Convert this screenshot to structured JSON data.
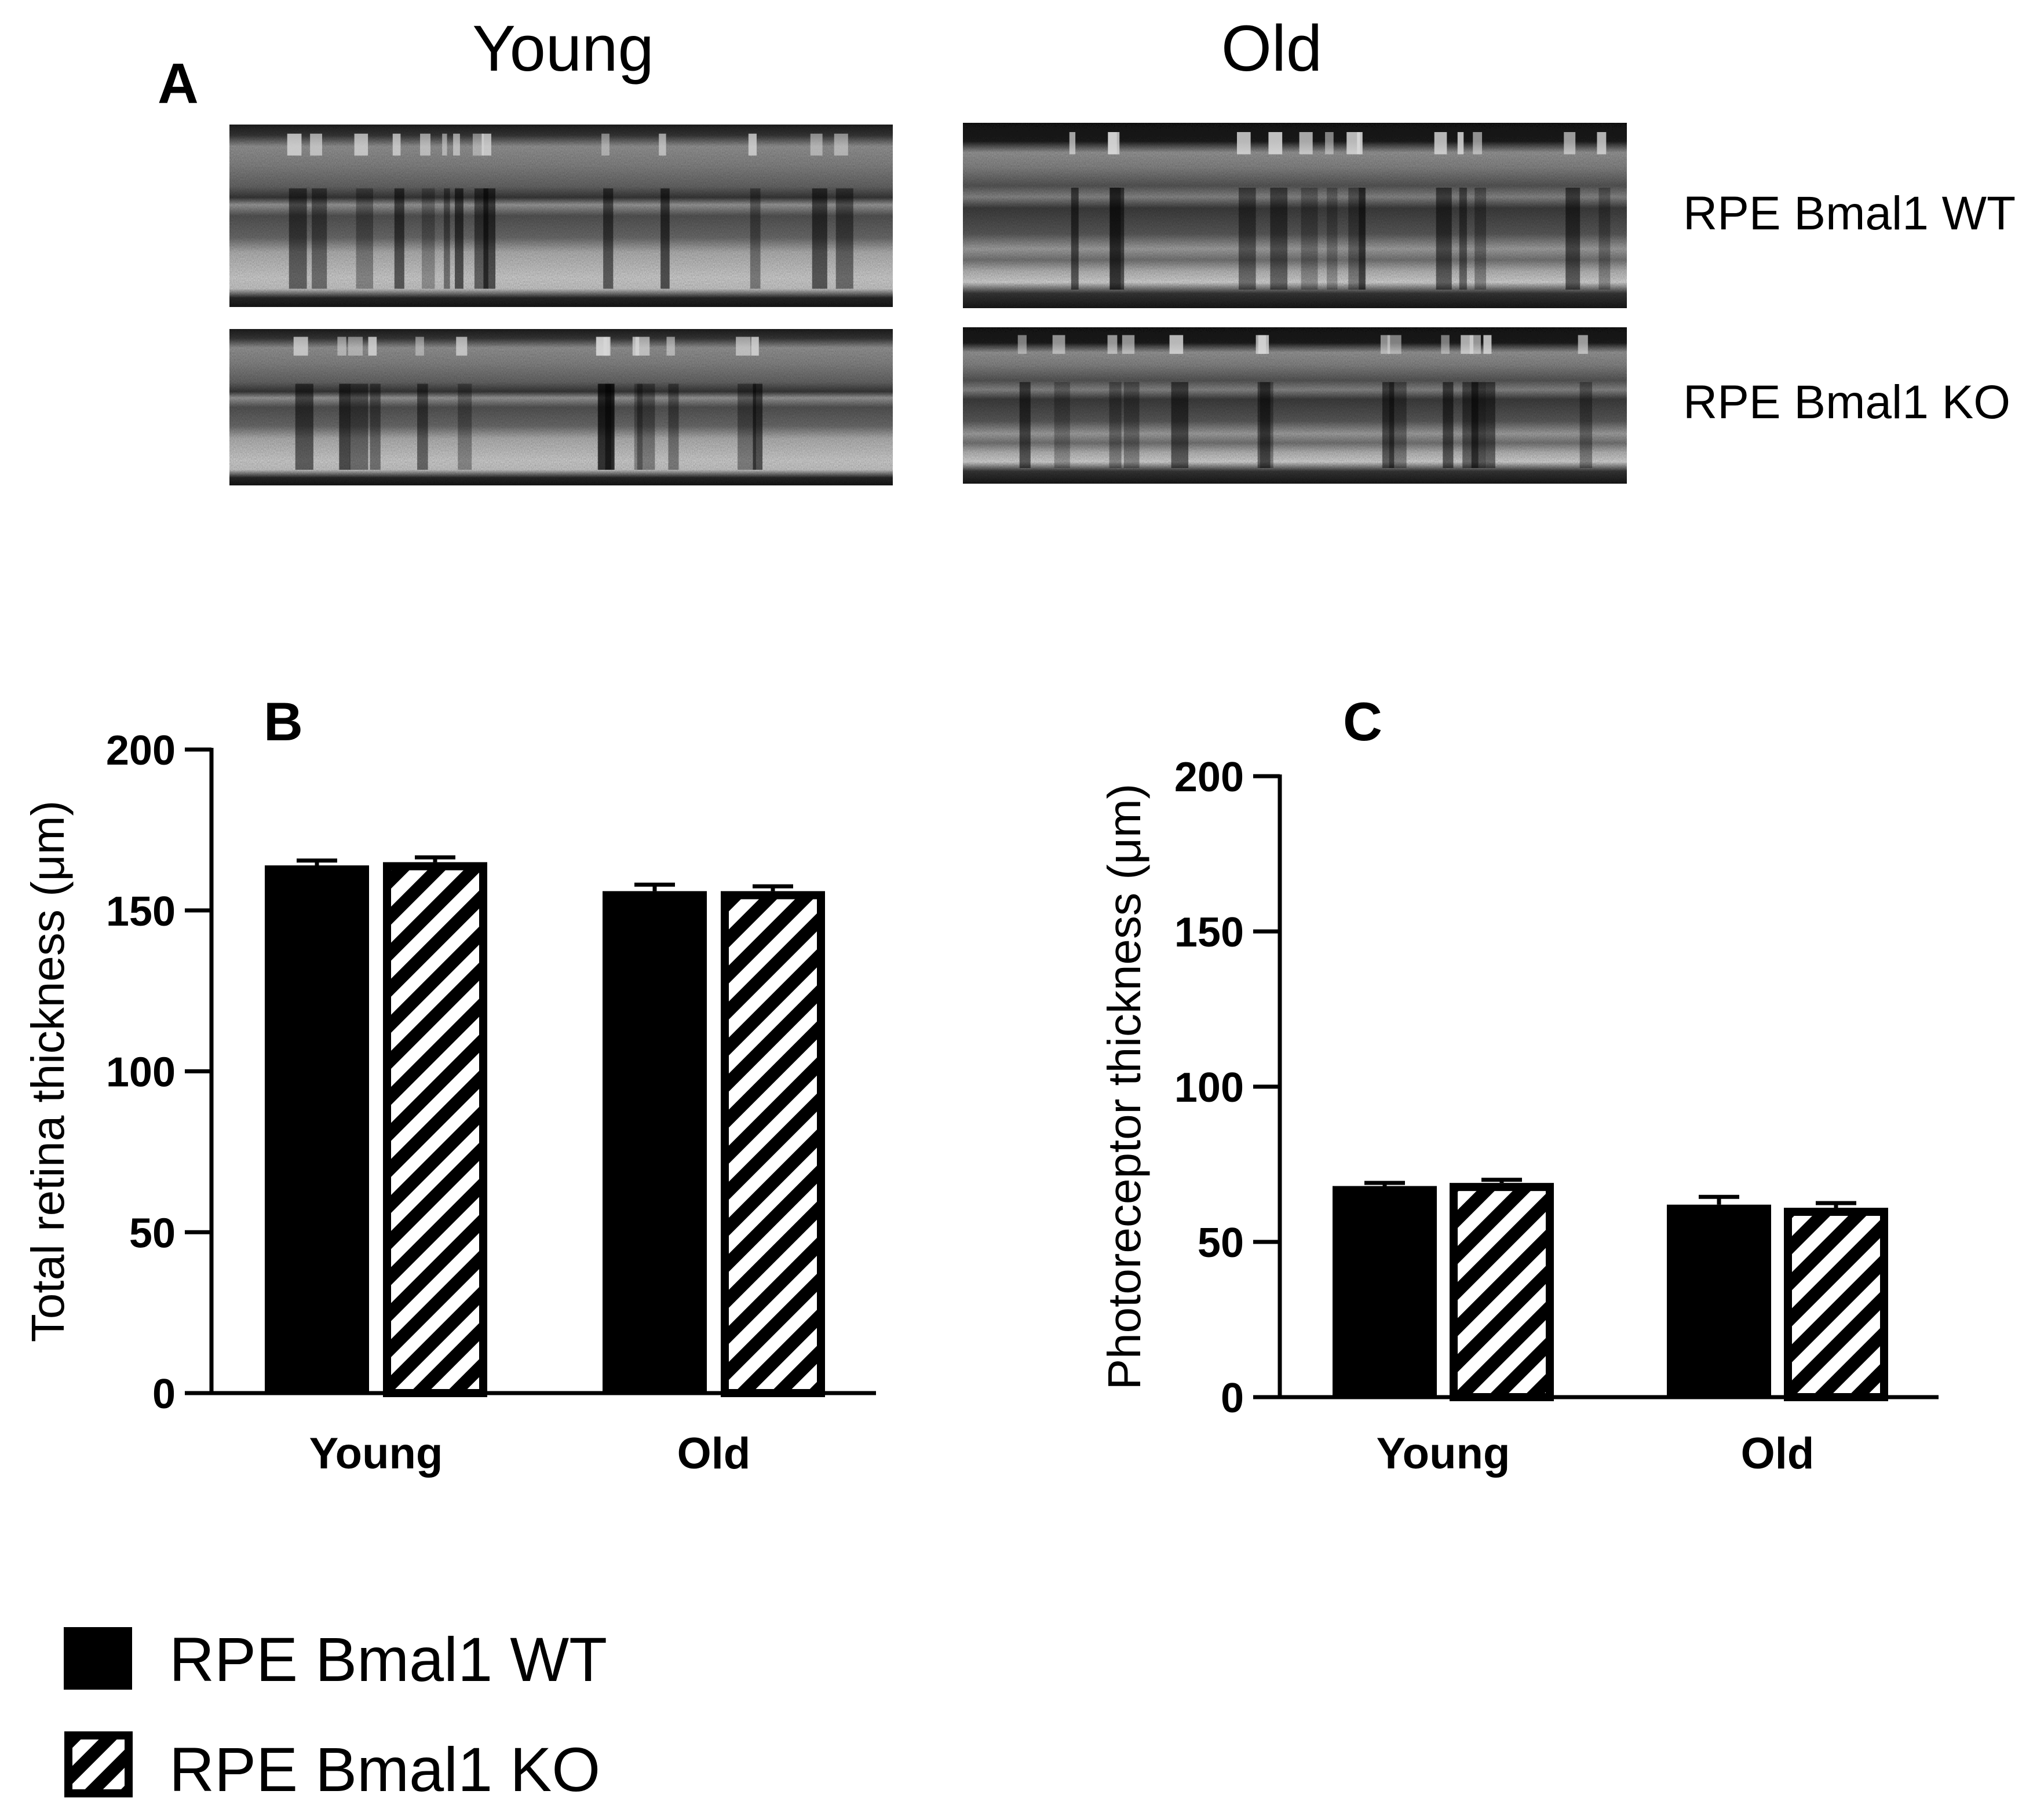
{
  "panel_a": {
    "label": "A",
    "col_headers": [
      "Young",
      "Old"
    ],
    "row_labels": [
      "RPE Bmal1 WT",
      "RPE Bmal1 KO"
    ]
  },
  "legend": {
    "wt_label": "RPE Bmal1 WT",
    "ko_label": "RPE Bmal1 KO"
  },
  "colors": {
    "bar_fill": "#000000",
    "background": "#ffffff"
  },
  "chart_data": [
    {
      "panel_label": "B",
      "type": "bar",
      "title": "",
      "xlabel": "",
      "ylabel": "Total retina thickness (μm)",
      "ylim": [
        0,
        200
      ],
      "yticks": [
        0,
        50,
        100,
        150,
        200
      ],
      "categories": [
        "Young",
        "Old"
      ],
      "series": [
        {
          "name": "RPE Bmal1 WT",
          "pattern": "solid",
          "values": [
            164,
            156
          ],
          "errors": [
            1.5,
            2
          ]
        },
        {
          "name": "RPE Bmal1 KO",
          "pattern": "hatched",
          "values": [
            165,
            156
          ],
          "errors": [
            1.5,
            1.5
          ]
        }
      ]
    },
    {
      "panel_label": "C",
      "type": "bar",
      "title": "",
      "xlabel": "",
      "ylabel": "Photoreceptor thickness (μm)",
      "ylim": [
        0,
        200
      ],
      "yticks": [
        0,
        50,
        100,
        150,
        200
      ],
      "categories": [
        "Young",
        "Old"
      ],
      "series": [
        {
          "name": "RPE Bmal1 WT",
          "pattern": "solid",
          "values": [
            68,
            62
          ],
          "errors": [
            1,
            2.5
          ]
        },
        {
          "name": "RPE Bmal1 KO",
          "pattern": "hatched",
          "values": [
            69,
            61
          ],
          "errors": [
            1,
            1.5
          ]
        }
      ]
    }
  ]
}
